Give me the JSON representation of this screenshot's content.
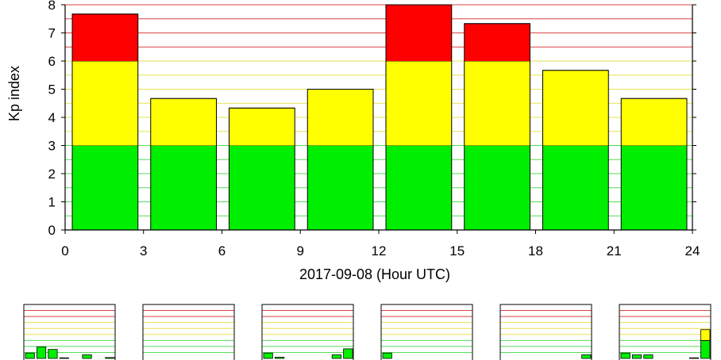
{
  "chart_data": {
    "type": "bar",
    "xlabel": "2017-09-08 (Hour UTC)",
    "ylabel": "Kp index",
    "x_ticks": [
      0,
      3,
      6,
      9,
      12,
      15,
      18,
      21,
      24
    ],
    "y_ticks": [
      0,
      1,
      2,
      3,
      4,
      5,
      6,
      7,
      8
    ],
    "xlim": [
      0,
      24
    ],
    "ylim": [
      0,
      8
    ],
    "bar_start_hours": [
      0,
      3,
      6,
      9,
      12,
      15,
      18,
      21
    ],
    "bar_width_hours": 3,
    "values": [
      7.67,
      4.67,
      4.33,
      5.0,
      8.0,
      7.33,
      5.67,
      4.67
    ],
    "bands": [
      {
        "from": 0,
        "to": 3,
        "color": "#00ee00",
        "grid_color": "#55dd55"
      },
      {
        "from": 3,
        "to": 6,
        "color": "#ffff00",
        "grid_color": "#e8e050"
      },
      {
        "from": 6,
        "to": 9,
        "color": "#ff0000",
        "grid_color": "#dd4444"
      }
    ],
    "grid": true,
    "mini_charts": [
      {
        "values": [
          0.9,
          1.9,
          1.5,
          0.1,
          0,
          0.6,
          0,
          0.15
        ]
      },
      {
        "values": [
          0,
          0,
          0,
          0,
          0,
          0,
          0,
          0
        ]
      },
      {
        "values": [
          0.9,
          0.2,
          0,
          0,
          0,
          0,
          0.6,
          1.6
        ]
      },
      {
        "values": [
          0.9,
          0,
          0,
          0,
          0,
          0,
          0,
          0
        ]
      },
      {
        "values": [
          0,
          0,
          0,
          0,
          0,
          0,
          0,
          0.6
        ]
      },
      {
        "values": [
          0.9,
          0.6,
          0.6,
          0,
          0,
          0,
          0.1,
          4.8
        ]
      }
    ],
    "mini_ylim": [
      0,
      9
    ]
  }
}
